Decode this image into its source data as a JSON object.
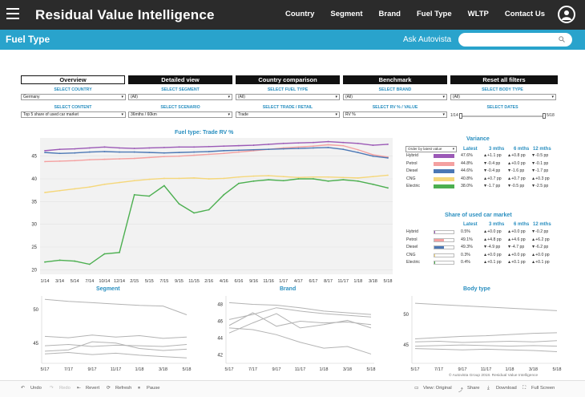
{
  "app": {
    "title": "Residual Value Intelligence"
  },
  "nav": [
    "Country",
    "Segment",
    "Brand",
    "Fuel Type",
    "WLTP",
    "Contact Us"
  ],
  "page": {
    "title": "Fuel Type",
    "ask_label": "Ask Autovista",
    "ask_placeholder": ""
  },
  "tabs": [
    "Overview",
    "Detailed view",
    "Country comparison",
    "Benchmark",
    "Reset all filters"
  ],
  "filters": {
    "row1": [
      {
        "label": "SELECT COUNTRY",
        "value": "Germany"
      },
      {
        "label": "SELECT SEGMENT",
        "value": "(All)"
      },
      {
        "label": "SELECT FUEL TYPE",
        "value": "(All)"
      },
      {
        "label": "SELECT BRAND",
        "value": "(All)"
      },
      {
        "label": "SELECT BODY TYPE",
        "value": "(All)"
      }
    ],
    "row2": [
      {
        "label": "SELECT CONTENT",
        "value": "Top 5 share of used car market"
      },
      {
        "label": "SELECT SCENARIO",
        "value": "36mths / 60km"
      },
      {
        "label": "SELECT TRADE / RETAIL",
        "value": "Trade"
      },
      {
        "label": "SELECT RV % / VALUE",
        "value": "RV %"
      }
    ],
    "dates": {
      "label": "SELECT DATES",
      "start": "1/14",
      "end": "5/18"
    }
  },
  "main_chart": {
    "title": "Fuel type: Trade RV %"
  },
  "variance": {
    "title": "Variance",
    "order_label": "Order by latest value",
    "headers": [
      "Latest",
      "3 mths",
      "6 mths",
      "12 mths"
    ],
    "rows": [
      {
        "name": "Hybrid",
        "color": "#9b59b6",
        "latest": "47.6%",
        "m3": "▲+1.1 pp",
        "m6": "▲+0.8 pp",
        "m12": "▼-0.5 pp"
      },
      {
        "name": "Petrol",
        "color": "#f4a0a0",
        "latest": "44.8%",
        "m3": "▼-0.4 pp",
        "m6": "▲+0.0 pp",
        "m12": "▼-0.1 pp"
      },
      {
        "name": "Diesel",
        "color": "#4c78b5",
        "latest": "44.6%",
        "m3": "▼-0.4 pp",
        "m6": "▼-1.6 pp",
        "m12": "▼-1.7 pp"
      },
      {
        "name": "CNG",
        "color": "#f5d77a",
        "latest": "40.8%",
        "m3": "▲+0.7 pp",
        "m6": "▲+0.7 pp",
        "m12": "▲+0.3 pp"
      },
      {
        "name": "Electric",
        "color": "#4caf50",
        "latest": "38.0%",
        "m3": "▼-1.7 pp",
        "m6": "▼-0.5 pp",
        "m12": "▼-2.5 pp"
      }
    ]
  },
  "share": {
    "title": "Share of used car market",
    "headers": [
      "Latest",
      "3 mths",
      "6 mths",
      "12 mths"
    ],
    "rows": [
      {
        "name": "Hybrid",
        "color": "#9b59b6",
        "share": 0.005,
        "latest": "0.5%",
        "m3": "▲+0.0 pp",
        "m6": "▲+0.0 pp",
        "m12": "▼-0.2 pp"
      },
      {
        "name": "Petrol",
        "color": "#f4a0a0",
        "share": 0.491,
        "latest": "49.1%",
        "m3": "▲+4.8 pp",
        "m6": "▲+4.6 pp",
        "m12": "▲+6.2 pp"
      },
      {
        "name": "Diesel",
        "color": "#4c78b5",
        "share": 0.493,
        "latest": "49.3%",
        "m3": "▼-4.9 pp",
        "m6": "▼-4.7 pp",
        "m12": "▼-6.2 pp"
      },
      {
        "name": "CNG",
        "color": "#f5d77a",
        "share": 0.003,
        "latest": "0.3%",
        "m3": "▲+0.0 pp",
        "m6": "▲+0.0 pp",
        "m12": "▲+0.0 pp"
      },
      {
        "name": "Electric",
        "color": "#4caf50",
        "share": 0.004,
        "latest": "0.4%",
        "m3": "▲+0.1 pp",
        "m6": "▲+0.1 pp",
        "m12": "▲+0.1 pp"
      }
    ]
  },
  "small_charts": [
    {
      "title": "Segment"
    },
    {
      "title": "Brand"
    },
    {
      "title": "Body type"
    }
  ],
  "toolbar": {
    "undo": "Undo",
    "redo": "Redo",
    "revert": "Revert",
    "refresh": "Refresh",
    "pause": "Pause",
    "view_original": "View: Original",
    "share": "Share",
    "download": "Download",
    "full_screen": "Full Screen"
  },
  "copyright": "© Autovista Group 2018. Residual Value Intelligence",
  "chart_data": [
    {
      "type": "line",
      "title": "Fuel type: Trade RV %",
      "categories": [
        "1/14",
        "3/14",
        "5/14",
        "7/14",
        "10/14",
        "12/14",
        "2/15",
        "5/15",
        "7/15",
        "9/15",
        "11/15",
        "2/16",
        "4/16",
        "6/16",
        "9/16",
        "11/16",
        "1/17",
        "4/17",
        "6/17",
        "8/17",
        "11/17",
        "1/18",
        "3/18",
        "5/18"
      ],
      "ylim": [
        19,
        49
      ],
      "yticks": [
        20,
        25,
        30,
        35,
        40,
        45
      ],
      "series": [
        {
          "name": "Hybrid",
          "color": "#9b59b6",
          "values": [
            46.2,
            46.5,
            46.6,
            46.8,
            47.0,
            46.8,
            46.7,
            46.8,
            46.9,
            47.0,
            47.0,
            47.1,
            47.2,
            47.3,
            47.4,
            47.6,
            47.8,
            47.9,
            48.0,
            48.2,
            48.0,
            47.8,
            47.4,
            47.6
          ]
        },
        {
          "name": "Petrol",
          "color": "#f4a0a0",
          "values": [
            43.8,
            43.9,
            44.0,
            44.2,
            44.3,
            44.4,
            44.5,
            44.7,
            44.9,
            45.0,
            45.2,
            45.4,
            45.6,
            45.9,
            46.2,
            46.5,
            46.8,
            47.0,
            47.2,
            47.5,
            47.3,
            46.4,
            45.3,
            44.8
          ]
        },
        {
          "name": "Diesel",
          "color": "#4c78b5",
          "values": [
            45.8,
            45.6,
            45.7,
            45.9,
            46.0,
            45.9,
            45.9,
            45.8,
            45.7,
            45.8,
            45.9,
            46.0,
            46.2,
            46.3,
            46.4,
            46.5,
            46.6,
            46.7,
            46.8,
            46.9,
            46.5,
            45.8,
            45.0,
            44.6
          ]
        },
        {
          "name": "CNG",
          "color": "#f5d77a",
          "values": [
            37.0,
            37.4,
            37.8,
            38.2,
            38.8,
            39.2,
            39.6,
            39.9,
            40.1,
            40.1,
            40.2,
            40.0,
            40.1,
            40.4,
            40.6,
            40.7,
            40.5,
            40.3,
            40.4,
            40.4,
            40.3,
            40.2,
            40.5,
            40.8
          ]
        },
        {
          "name": "Electric",
          "color": "#4caf50",
          "values": [
            21.7,
            22.1,
            21.9,
            21.2,
            23.5,
            23.8,
            36.5,
            36.2,
            38.5,
            34.5,
            32.5,
            33.2,
            36.5,
            39.0,
            39.5,
            39.8,
            39.6,
            40.0,
            40.0,
            39.5,
            39.8,
            39.5,
            38.8,
            38.0
          ]
        }
      ]
    },
    {
      "type": "line",
      "title": "Segment",
      "categories": [
        "5/17",
        "7/17",
        "9/17",
        "11/17",
        "1/18",
        "3/18",
        "5/18"
      ],
      "yticks": [
        45,
        50
      ],
      "ylim": [
        42,
        52
      ],
      "series": [
        {
          "values": [
            51.5,
            51.2,
            51.0,
            50.8,
            50.6,
            50.5,
            49.2
          ]
        },
        {
          "values": [
            46.0,
            45.8,
            46.2,
            45.9,
            46.1,
            45.7,
            45.9
          ]
        },
        {
          "values": [
            44.6,
            44.8,
            44.5,
            44.7,
            44.6,
            44.5,
            44.8
          ]
        },
        {
          "values": [
            43.8,
            44.0,
            45.2,
            45.0,
            44.2,
            43.9,
            44.1
          ]
        },
        {
          "values": [
            43.4,
            43.6,
            43.3,
            43.5,
            43.2,
            43.0,
            42.8
          ]
        }
      ]
    },
    {
      "type": "line",
      "title": "Brand",
      "categories": [
        "5/17",
        "7/17",
        "9/17",
        "11/17",
        "1/18",
        "3/18",
        "5/18"
      ],
      "yticks": [
        42,
        44,
        46,
        48
      ],
      "ylim": [
        41,
        49
      ],
      "series": [
        {
          "values": [
            48.2,
            48.0,
            47.9,
            47.6,
            47.2,
            47.0,
            46.8
          ]
        },
        {
          "values": [
            46.2,
            46.8,
            47.6,
            47.2,
            46.9,
            46.7,
            46.5
          ]
        },
        {
          "values": [
            45.5,
            47.0,
            45.4,
            46.0,
            45.8,
            45.9,
            45.6
          ]
        },
        {
          "values": [
            45.2,
            45.0,
            44.4,
            43.5,
            42.8,
            43.0,
            42.1
          ]
        },
        {
          "values": [
            44.6,
            45.8,
            46.9,
            45.2,
            45.6,
            46.1,
            45.2
          ]
        }
      ]
    },
    {
      "type": "line",
      "title": "Body type",
      "categories": [
        "5/17",
        "7/17",
        "9/17",
        "11/17",
        "1/18",
        "3/18",
        "5/18"
      ],
      "yticks": [
        45,
        50
      ],
      "ylim": [
        42,
        53
      ],
      "series": [
        {
          "values": [
            51.8,
            51.6,
            51.4,
            51.2,
            51.0,
            50.8,
            50.6
          ]
        },
        {
          "values": [
            46.0,
            46.2,
            46.4,
            46.5,
            46.7,
            46.9,
            47.0
          ]
        },
        {
          "values": [
            45.5,
            45.6,
            45.4,
            45.5,
            45.6,
            45.5,
            45.7
          ]
        },
        {
          "values": [
            44.8,
            44.9,
            45.0,
            44.9,
            44.8,
            44.9,
            44.8
          ]
        },
        {
          "values": [
            44.4,
            44.3,
            44.2,
            44.3,
            44.2,
            44.1,
            43.9
          ]
        }
      ]
    }
  ]
}
